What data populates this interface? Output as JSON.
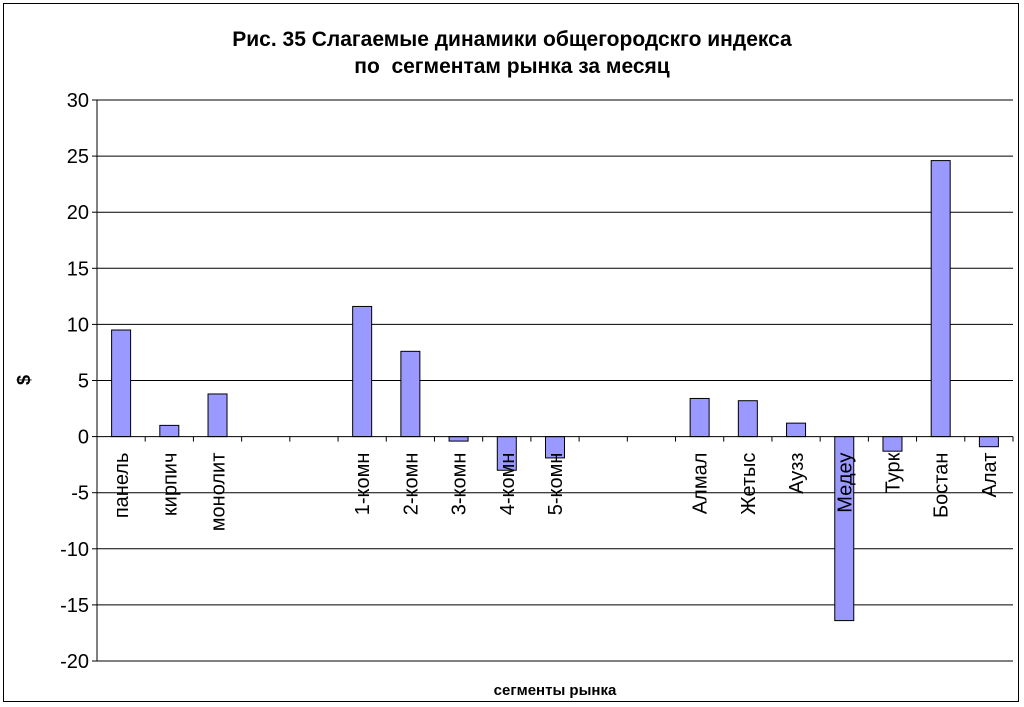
{
  "chart_data": {
    "type": "bar",
    "title_lines": [
      "Рис. 35 Слагаемые динамики общегородскго индекса",
      "по  сегментам рынка за месяц"
    ],
    "xlabel": "сегменты рынка",
    "ylabel": "$",
    "ylim": [
      -20,
      30
    ],
    "yticks": [
      30,
      25,
      20,
      15,
      10,
      5,
      0,
      -5,
      -10,
      -15,
      -20
    ],
    "grid": true,
    "bar_color": "#9999ff",
    "categories": [
      "панель",
      "кирпич",
      "монолит",
      "",
      "",
      "1-комн",
      "2-комн",
      "3-комн",
      "4-комн",
      "5-комн",
      "",
      "",
      "Алмал",
      "Жетыс",
      "Аузз",
      "Медеу",
      "Турк",
      "Бостан",
      "Алат"
    ],
    "values": [
      9.5,
      1.0,
      3.8,
      null,
      null,
      11.6,
      7.6,
      -0.4,
      -3.0,
      -1.9,
      null,
      null,
      3.4,
      3.2,
      1.2,
      -16.4,
      -1.3,
      24.6,
      -0.9
    ]
  }
}
